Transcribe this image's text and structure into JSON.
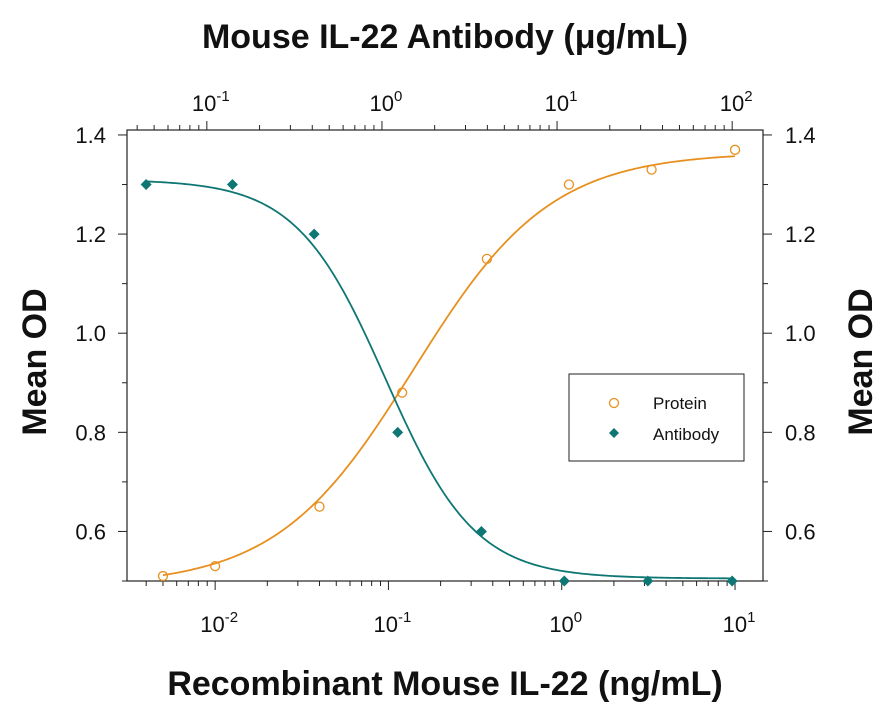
{
  "chart_data": {
    "type": "scatter",
    "title": "Mouse IL-22 Antibody (μg/mL)",
    "xlabel": "Recombinant Mouse IL-22 (ng/mL)",
    "x2label": "Mouse IL-22 Antibody (μg/mL)",
    "ylabel": "Mean OD",
    "y2label": "Mean OD",
    "xscale": "log",
    "x2scale": "log",
    "xlim": [
      0.0031,
      14.5
    ],
    "x2lim": [
      0.035,
      150
    ],
    "ylim": [
      0.5,
      1.41
    ],
    "x_ticks": [
      {
        "base": "10",
        "exp": "-2"
      },
      {
        "base": "10",
        "exp": "-1"
      },
      {
        "base": "10",
        "exp": "0"
      },
      {
        "base": "10",
        "exp": "1"
      }
    ],
    "x2_ticks": [
      {
        "base": "10",
        "exp": "-1"
      },
      {
        "base": "10",
        "exp": "0"
      },
      {
        "base": "10",
        "exp": "1"
      },
      {
        "base": "10",
        "exp": "2"
      }
    ],
    "y_ticks": [
      "0.6",
      "0.8",
      "1.0",
      "1.2",
      "1.4"
    ],
    "grid": false,
    "legend_position": "center-right",
    "series": [
      {
        "name": "Protein",
        "axis": "bottom",
        "marker": "open-circle",
        "color": "#E8901F",
        "x": [
          0.005,
          0.01,
          0.04,
          0.12,
          0.37,
          1.1,
          3.3,
          10
        ],
        "y": [
          0.51,
          0.53,
          0.65,
          0.88,
          1.15,
          1.3,
          1.33,
          1.37
        ],
        "fit": {
          "bottom": 0.49,
          "top": 1.365,
          "ec50": 0.14,
          "hill": 1.1
        }
      },
      {
        "name": "Antibody",
        "axis": "top",
        "marker": "filled-diamond",
        "color": "#0E7774",
        "x": [
          0.045,
          0.14,
          0.41,
          1.23,
          3.7,
          11,
          33,
          100
        ],
        "y": [
          1.3,
          1.3,
          1.2,
          0.8,
          0.6,
          0.5,
          0.5,
          0.5
        ],
        "fit": {
          "bottom": 0.505,
          "top": 1.31,
          "ec50": 1.05,
          "hill": 1.7
        }
      }
    ]
  }
}
